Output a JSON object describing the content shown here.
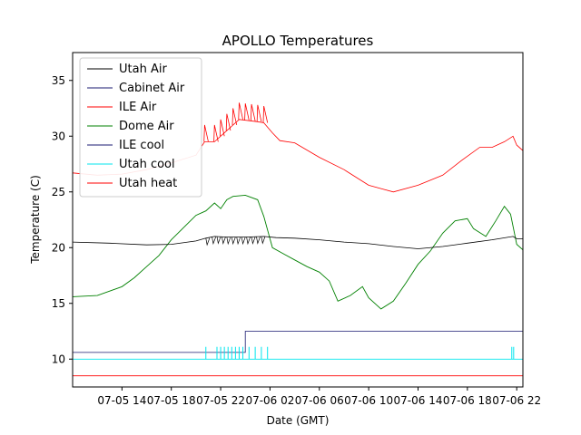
{
  "chart_data": {
    "type": "line",
    "title": "APOLLO Temperatures",
    "xlabel": "Date (GMT)",
    "ylabel": "Temperature (C)",
    "x_unit": "hours since 07-05 10:00 GMT",
    "xlim": [
      0,
      36.5
    ],
    "ylim": [
      7.5,
      37.5
    ],
    "x_ticks": [
      {
        "x": 4,
        "label": "07-05 14"
      },
      {
        "x": 8,
        "label": "07-05 18"
      },
      {
        "x": 12,
        "label": "07-05 22"
      },
      {
        "x": 16,
        "label": "07-06 02"
      },
      {
        "x": 20,
        "label": "07-06 06"
      },
      {
        "x": 24,
        "label": "07-06 10"
      },
      {
        "x": 28,
        "label": "07-06 14"
      },
      {
        "x": 32,
        "label": "07-06 18"
      },
      {
        "x": 36,
        "label": "07-06 22"
      }
    ],
    "y_ticks": [
      {
        "y": 10,
        "label": "10"
      },
      {
        "y": 15,
        "label": "15"
      },
      {
        "y": 20,
        "label": "20"
      },
      {
        "y": 25,
        "label": "25"
      },
      {
        "y": 30,
        "label": "30"
      },
      {
        "y": 35,
        "label": "35"
      }
    ],
    "legend_position": "top-left",
    "series": [
      {
        "name": "Utah Air",
        "color": "#000000",
        "x": [
          0,
          3,
          6,
          8,
          10,
          10.8,
          11.5,
          12.5,
          14,
          15.5,
          16.5,
          18,
          20,
          22,
          24,
          26,
          28,
          30,
          32,
          34,
          35.7,
          36,
          36.5
        ],
        "y": [
          20.5,
          20.4,
          20.25,
          20.3,
          20.6,
          20.85,
          21.0,
          20.95,
          20.95,
          21.0,
          20.9,
          20.85,
          20.7,
          20.5,
          20.35,
          20.1,
          19.9,
          20.1,
          20.4,
          20.7,
          21.0,
          20.8,
          20.8
        ]
      },
      {
        "name": "Cabinet Air",
        "color": "#191970",
        "x": [],
        "y": []
      },
      {
        "name": "ILE Air",
        "color": "#ff0000",
        "x": [
          0,
          2,
          4,
          6,
          8,
          10,
          10.7,
          11.5,
          12.5,
          13.5,
          15,
          15.5,
          16.2,
          16.8,
          18,
          20,
          22,
          24,
          25,
          26,
          28,
          30,
          31.5,
          33,
          34,
          35,
          35.7,
          36,
          36.5
        ],
        "y": [
          26.7,
          26.5,
          26.6,
          27.0,
          27.6,
          28.3,
          29.5,
          29.5,
          30.5,
          31.5,
          31.3,
          31.2,
          30.3,
          29.6,
          29.4,
          28.1,
          27.0,
          25.6,
          25.3,
          25.0,
          25.6,
          26.5,
          27.8,
          29.0,
          29.0,
          29.5,
          30.0,
          29.2,
          28.7
        ]
      },
      {
        "name": "Dome Air",
        "color": "#008000",
        "x": [
          0,
          2,
          4,
          5,
          6,
          7,
          8,
          9,
          10,
          10.8,
          11.5,
          12,
          12.5,
          13,
          14,
          15,
          15.5,
          16.2,
          17,
          18,
          19,
          20,
          20.8,
          21.5,
          22.5,
          23.5,
          24,
          25,
          26,
          27,
          28,
          29,
          30,
          31,
          32,
          32.5,
          33.5,
          34.3,
          35,
          35.5,
          36,
          36.5
        ],
        "y": [
          15.6,
          15.7,
          16.5,
          17.3,
          18.3,
          19.3,
          20.7,
          21.8,
          22.9,
          23.3,
          24.0,
          23.5,
          24.3,
          24.6,
          24.7,
          24.3,
          22.8,
          20.0,
          19.5,
          18.9,
          18.3,
          17.8,
          17.0,
          15.2,
          15.7,
          16.5,
          15.5,
          14.5,
          15.2,
          16.8,
          18.5,
          19.7,
          21.3,
          22.4,
          22.6,
          21.7,
          21.0,
          22.4,
          23.7,
          23.0,
          20.3,
          19.8
        ]
      },
      {
        "name": "ILE cool",
        "color": "#191970",
        "x": [
          0,
          14,
          14,
          36.5
        ],
        "y": [
          10.6,
          10.6,
          12.5,
          12.5
        ]
      },
      {
        "name": "Utah cool",
        "color": "#00e5ee",
        "x": [
          0,
          36.5
        ],
        "y": [
          10.0,
          10.0
        ],
        "spikes_x": [
          10.8,
          11.7,
          12.0,
          12.3,
          12.6,
          12.9,
          13.2,
          13.5,
          13.8,
          14.3,
          14.8,
          15.3,
          15.8,
          35.6,
          35.75
        ],
        "spike_top": 11.1
      },
      {
        "name": "Utah heat",
        "color": "#ff0000",
        "x": [
          0,
          36.5
        ],
        "y": [
          8.5,
          8.5
        ]
      }
    ],
    "ile_air_spikes_x": [
      10.7,
      11.5,
      12.0,
      12.5,
      13.0,
      13.5,
      14.0,
      14.5,
      15.0,
      15.5
    ],
    "utah_air_ripple_x": [
      10.8,
      11.3,
      11.7,
      12.1,
      12.5,
      12.9,
      13.3,
      13.7,
      14.1,
      14.5,
      14.9,
      15.3
    ]
  }
}
